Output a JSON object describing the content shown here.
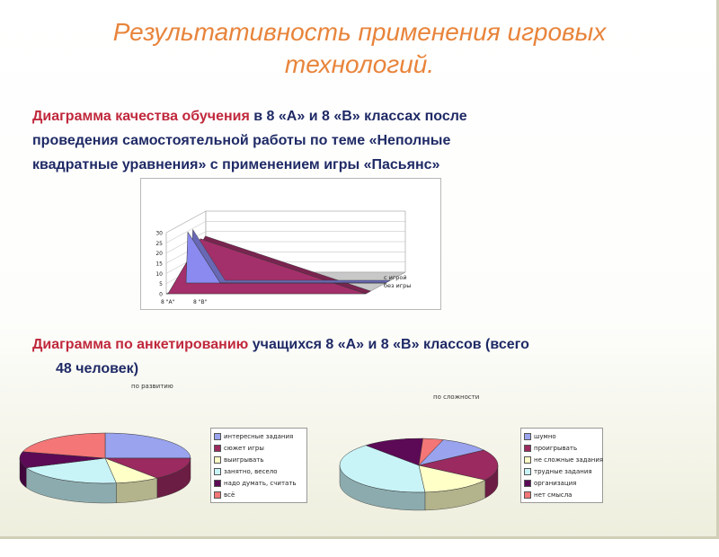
{
  "title": "Результативность применения игровых технологий.",
  "paragraph1": {
    "lead": "Диаграмма качества обучения",
    "rest1": " в 8 «А» и 8 «В» классах после",
    "line2": "проведения самостоятельной работы по теме «Неполные",
    "line3": "квадратные уравнения» с применением игры «Пасьянс»"
  },
  "paragraph2": {
    "lead": "Диаграмма по анкетированию",
    "rest1": " учащихся 8 «А» и 8 «В» классов (всего",
    "line2": "48 человек)"
  },
  "colors": {
    "title": "#e8843b",
    "body_text": "#1f2a66",
    "highlight": "#c0283c"
  },
  "chart_data": [
    {
      "type": "area",
      "categories": [
        "8 \"А\"",
        "8 \"В\""
      ],
      "series": [
        {
          "name": "с игрой",
          "values": [
            0,
            27
          ],
          "color": "#a3306a"
        },
        {
          "name": "без игры",
          "values": [
            25,
            0
          ],
          "color": "#8a8af0"
        }
      ],
      "ylim": [
        0,
        30
      ],
      "yticks": [
        0,
        5,
        10,
        15,
        20,
        25,
        30
      ],
      "three_d": true,
      "legend_position": "right"
    },
    {
      "type": "pie",
      "title": "по развитию",
      "three_d": true,
      "labels": [
        "интересные задания",
        "сюжет игры",
        "выигрывать",
        "занятно, весело",
        "надо думать, считать",
        "всё"
      ],
      "values": [
        12,
        7,
        4,
        10,
        5,
        10
      ],
      "colors": [
        "#9aa3ee",
        "#9a2a5f",
        "#ffffc8",
        "#c8f4f8",
        "#5c0a56",
        "#f47676"
      ],
      "legend_position": "right"
    },
    {
      "type": "pie",
      "title": "по сложности",
      "three_d": true,
      "labels": [
        "шумно",
        "проигрывать",
        "не сложные задания",
        "трудные задания",
        "организация",
        "нет смысла"
      ],
      "values": [
        5,
        9,
        7,
        19,
        6,
        2
      ],
      "colors": [
        "#9aa3ee",
        "#9a2a5f",
        "#ffffc8",
        "#c8f4f8",
        "#5c0a56",
        "#f47676"
      ],
      "legend_position": "right"
    }
  ]
}
